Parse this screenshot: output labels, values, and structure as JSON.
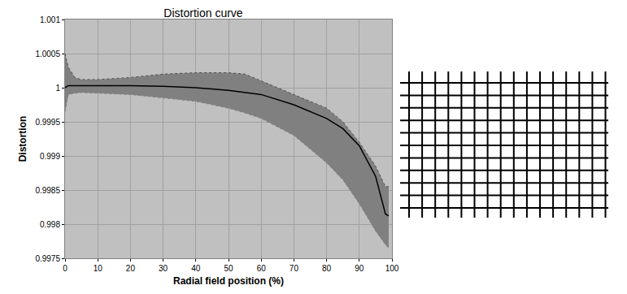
{
  "chart_data": {
    "type": "line",
    "title": "Distortion curve",
    "x_label": "Radial field position (%)",
    "y_label": "Distortion",
    "x": [
      0,
      1,
      3,
      5,
      10,
      20,
      30,
      40,
      50,
      55,
      60,
      70,
      80,
      85,
      90,
      95,
      98,
      99
    ],
    "series": [
      {
        "type": "line",
        "line_style": "dotted",
        "color": "#505050",
        "values": [
          1.0005,
          1.0003,
          1.00015,
          1.00012,
          1.00012,
          1.00015,
          1.0002,
          1.00022,
          1.00022,
          1.0002,
          1.0001,
          0.9999,
          0.9997,
          0.9995,
          0.9992,
          0.99885,
          0.99855,
          0.99855
        ]
      },
      {
        "type": "area",
        "line_style": "dotted",
        "color": "#808080",
        "values": [
          0.99965,
          0.9999,
          0.99992,
          0.99993,
          0.99992,
          0.9999,
          0.99985,
          0.9998,
          0.9997,
          0.99963,
          0.99955,
          0.9993,
          0.9989,
          0.99865,
          0.9983,
          0.9979,
          0.9977,
          0.99765
        ]
      },
      {
        "type": "line",
        "line_style": "solid",
        "color": "#000000",
        "values": [
          1.0,
          1.00003,
          1.00003,
          1.00003,
          1.00003,
          1.00003,
          1.00002,
          1.0,
          0.99996,
          0.99993,
          0.9999,
          0.99975,
          0.99955,
          0.9994,
          0.99915,
          0.9987,
          0.99815,
          0.99812
        ]
      }
    ],
    "xlim": [
      0,
      100
    ],
    "xticks": [
      0,
      10,
      20,
      30,
      40,
      50,
      60,
      70,
      80,
      90,
      100
    ],
    "ylim": [
      0.9975,
      1.001
    ],
    "yticks": [
      0.9975,
      0.998,
      0.9985,
      0.999,
      0.9995,
      1,
      1.0005,
      1.001
    ],
    "grid": true
  }
}
